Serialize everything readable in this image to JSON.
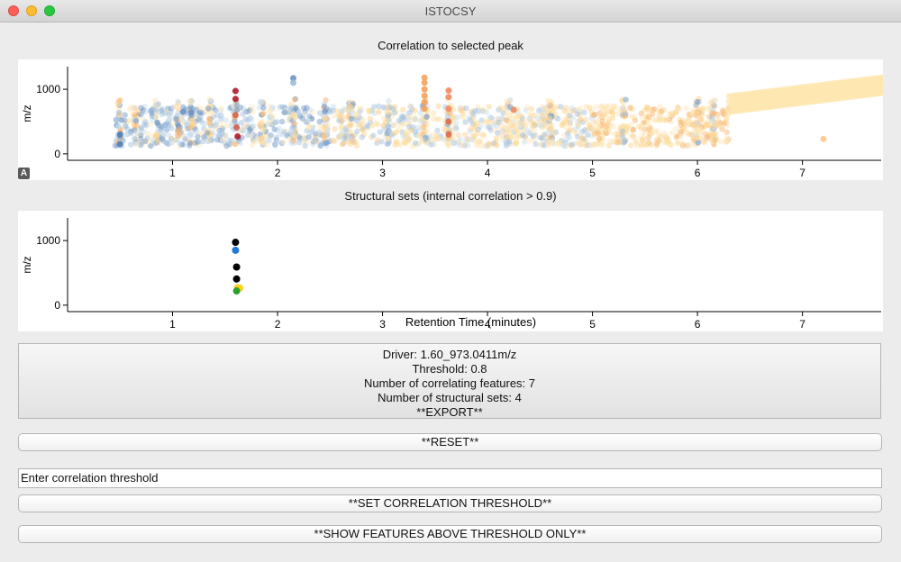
{
  "window": {
    "title": "ISTOCSY"
  },
  "plot1": {
    "title": "Correlation to selected peak",
    "ylabel": "m/z",
    "autoscale_label": "A"
  },
  "plot2": {
    "title": "Structural sets (internal correlation > 0.9)",
    "ylabel": "m/z",
    "xlabel": "Retention Time (minutes)"
  },
  "info": {
    "driver": "Driver: 1.60_973.0411m/z",
    "threshold": "Threshold: 0.8",
    "correlating": "Number of correlating features: 7",
    "structural": "Number of structural sets: 4",
    "export": "**EXPORT**"
  },
  "buttons": {
    "reset": "**RESET**",
    "set_threshold": "**SET CORRELATION THRESHOLD**",
    "show_above": "**SHOW FEATURES ABOVE THRESHOLD ONLY**"
  },
  "threshold_input": {
    "value": "Enter correlation threshold"
  },
  "chart_data": [
    {
      "type": "scatter",
      "title": "Correlation to selected peak",
      "xlabel": "",
      "ylabel": "m/z",
      "xlim": [
        0,
        7.75
      ],
      "ylim": [
        -100,
        1350
      ],
      "x_ticks": [
        1,
        2,
        3,
        4,
        5,
        6,
        7
      ],
      "y_ticks": [
        0,
        1000
      ],
      "grid": false,
      "colormap": [
        "#2166ac",
        "#67a9cf",
        "#d1e5f0",
        "#fddbc7",
        "#fee090",
        "#ef8a62",
        "#b2182b"
      ],
      "highlight_points": [
        {
          "x": 1.6,
          "y": 973,
          "color": "#b2182b"
        },
        {
          "x": 1.6,
          "y": 850,
          "color": "#b2182b"
        },
        {
          "x": 1.6,
          "y": 600,
          "color": "#d6604d"
        },
        {
          "x": 1.61,
          "y": 410,
          "color": "#d6604d"
        },
        {
          "x": 1.62,
          "y": 270,
          "color": "#b2182b"
        },
        {
          "x": 2.15,
          "y": 1170,
          "color": "#6a93c4"
        },
        {
          "x": 2.15,
          "y": 1100,
          "color": "#9ebcdb"
        },
        {
          "x": 3.4,
          "y": 1180,
          "color": "#f4a25a"
        },
        {
          "x": 3.4,
          "y": 1100,
          "color": "#f4a25a"
        },
        {
          "x": 3.4,
          "y": 1000,
          "color": "#f4a25a"
        },
        {
          "x": 3.4,
          "y": 900,
          "color": "#f4a25a"
        },
        {
          "x": 3.4,
          "y": 800,
          "color": "#f4a25a"
        },
        {
          "x": 3.4,
          "y": 700,
          "color": "#f4a25a"
        },
        {
          "x": 3.63,
          "y": 980,
          "color": "#ef8a62"
        },
        {
          "x": 3.63,
          "y": 880,
          "color": "#ef8a62"
        },
        {
          "x": 3.63,
          "y": 700,
          "color": "#ef8a62"
        },
        {
          "x": 3.63,
          "y": 500,
          "color": "#e06a4a"
        },
        {
          "x": 3.63,
          "y": 300,
          "color": "#e06a4a"
        },
        {
          "x": 4.25,
          "y": 680,
          "color": "#ef8a62"
        },
        {
          "x": 7.2,
          "y": 230,
          "color": "#fcc98a"
        },
        {
          "x": 0.5,
          "y": 300,
          "color": "#4f7fb8"
        },
        {
          "x": 0.5,
          "y": 150,
          "color": "#4f7fb8"
        },
        {
          "x": 1.1,
          "y": 650,
          "color": "#6a93c4"
        },
        {
          "x": 1.18,
          "y": 640,
          "color": "#6a93c4"
        }
      ]
    },
    {
      "type": "scatter",
      "title": "Structural sets (internal correlation > 0.9)",
      "xlabel": "Retention Time (minutes)",
      "ylabel": "m/z",
      "xlim": [
        0,
        7.75
      ],
      "ylim": [
        -100,
        1350
      ],
      "x_ticks": [
        1,
        2,
        3,
        4,
        5,
        6,
        7
      ],
      "y_ticks": [
        0,
        1000
      ],
      "grid": false,
      "points": [
        {
          "x": 1.6,
          "y": 973,
          "color": "#000000"
        },
        {
          "x": 1.6,
          "y": 850,
          "color": "#1f77d4"
        },
        {
          "x": 1.61,
          "y": 590,
          "color": "#000000"
        },
        {
          "x": 1.61,
          "y": 405,
          "color": "#000000"
        },
        {
          "x": 1.62,
          "y": 270,
          "color": "#ffd21a"
        },
        {
          "x": 1.64,
          "y": 265,
          "color": "#ffd21a"
        },
        {
          "x": 1.61,
          "y": 220,
          "color": "#2ca02c"
        }
      ]
    }
  ]
}
